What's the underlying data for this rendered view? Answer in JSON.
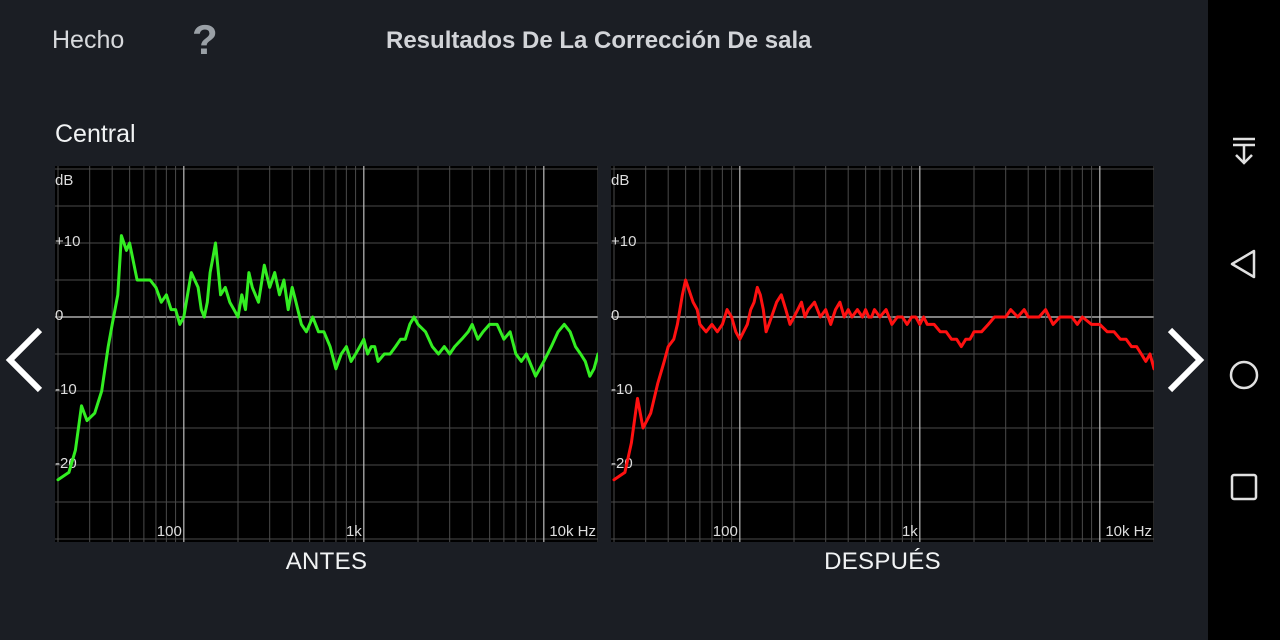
{
  "header": {
    "done_label": "Hecho",
    "help_label": "?",
    "title": "Resultados De La Corrección De sala"
  },
  "channel": "Central",
  "colors": {
    "before": "#33ee22",
    "after": "#ff1111",
    "grid": "#555555",
    "zero": "#cccccc"
  },
  "chart_data": [
    {
      "type": "line",
      "caption": "ANTES",
      "color": "#33ee22",
      "ylabel": "dB",
      "xlabel": "Hz",
      "x_scale": "log",
      "xlim": [
        20,
        20000
      ],
      "ylim": [
        -30,
        20
      ],
      "y_ticks": [
        10,
        0,
        -10,
        -20
      ],
      "y_tick_labels": [
        "+10",
        "0",
        "-10",
        "-20"
      ],
      "x_ticks": [
        100,
        1000,
        10000
      ],
      "x_tick_labels": [
        "100",
        "1k",
        "10k Hz"
      ],
      "series": [
        {
          "x": [
            20,
            23,
            25,
            27,
            29,
            32,
            35,
            38,
            40,
            43,
            45,
            48,
            50,
            55,
            58,
            60,
            65,
            70,
            75,
            80,
            85,
            90,
            95,
            100,
            110,
            115,
            120,
            125,
            130,
            135,
            140,
            145,
            150,
            160,
            170,
            180,
            190,
            200,
            210,
            220,
            230,
            240,
            260,
            280,
            300,
            320,
            340,
            360,
            380,
            400,
            420,
            450,
            480,
            500,
            520,
            540,
            560,
            600,
            650,
            700,
            750,
            800,
            850,
            900,
            950,
            1000,
            1050,
            1100,
            1150,
            1200,
            1300,
            1400,
            1500,
            1600,
            1700,
            1800,
            1900,
            2000,
            2200,
            2400,
            2600,
            2800,
            3000,
            3200,
            3500,
            3800,
            4000,
            4300,
            4600,
            5000,
            5500,
            6000,
            6500,
            7000,
            7500,
            8000,
            9000,
            10000,
            11000,
            12000,
            13000,
            14000,
            15000,
            16000,
            17000,
            18000,
            19000,
            20000
          ],
          "y": [
            -22,
            -21,
            -18,
            -12,
            -14,
            -13,
            -10,
            -4,
            -1,
            3,
            11,
            9,
            10,
            5,
            5,
            5,
            5,
            4,
            2,
            3,
            1,
            1,
            -1,
            0,
            6,
            5,
            4,
            1,
            0,
            2,
            6,
            8,
            10,
            3,
            4,
            2,
            1,
            0,
            3,
            1,
            6,
            4,
            2,
            7,
            4,
            6,
            3,
            5,
            1,
            4,
            2,
            -1,
            -2,
            -1,
            0,
            -1,
            -2,
            -2,
            -4,
            -7,
            -5,
            -4,
            -6,
            -5,
            -4,
            -3,
            -5,
            -4,
            -4,
            -6,
            -5,
            -5,
            -4,
            -3,
            -3,
            -1,
            0,
            -1,
            -2,
            -4,
            -5,
            -4,
            -5,
            -4,
            -3,
            -2,
            -1,
            -3,
            -2,
            -1,
            -1,
            -3,
            -2,
            -5,
            -6,
            -5,
            -8,
            -6,
            -4,
            -2,
            -1,
            -2,
            -4,
            -5,
            -6,
            -8,
            -7,
            -5
          ]
        }
      ]
    },
    {
      "type": "line",
      "caption": "DESPUÉS",
      "color": "#ff1111",
      "ylabel": "dB",
      "xlabel": "Hz",
      "x_scale": "log",
      "xlim": [
        20,
        20000
      ],
      "ylim": [
        -30,
        20
      ],
      "y_ticks": [
        10,
        0,
        -10,
        -20
      ],
      "y_tick_labels": [
        "+10",
        "0",
        "-10",
        "-20"
      ],
      "x_ticks": [
        100,
        1000,
        10000
      ],
      "x_tick_labels": [
        "100",
        "1k",
        "10k Hz"
      ],
      "series": [
        {
          "x": [
            20,
            23,
            25,
            27,
            29,
            32,
            35,
            38,
            40,
            43,
            45,
            48,
            50,
            55,
            58,
            60,
            65,
            70,
            75,
            80,
            85,
            90,
            95,
            100,
            110,
            115,
            120,
            125,
            130,
            135,
            140,
            145,
            150,
            160,
            170,
            180,
            190,
            200,
            210,
            220,
            230,
            240,
            260,
            280,
            300,
            320,
            340,
            360,
            380,
            400,
            420,
            450,
            480,
            500,
            520,
            540,
            560,
            600,
            650,
            700,
            750,
            800,
            850,
            900,
            950,
            1000,
            1050,
            1100,
            1150,
            1200,
            1300,
            1400,
            1500,
            1600,
            1700,
            1800,
            1900,
            2000,
            2200,
            2400,
            2600,
            2800,
            3000,
            3200,
            3500,
            3800,
            4000,
            4300,
            4600,
            5000,
            5500,
            6000,
            6500,
            7000,
            7500,
            8000,
            9000,
            10000,
            11000,
            12000,
            13000,
            14000,
            15000,
            16000,
            17000,
            18000,
            19000,
            20000
          ],
          "y": [
            -22,
            -21,
            -17,
            -11,
            -15,
            -13,
            -9,
            -6,
            -4,
            -3,
            -1,
            3,
            5,
            2,
            1,
            -1,
            -2,
            -1,
            -2,
            -1,
            1,
            0,
            -2,
            -3,
            -1,
            1,
            2,
            4,
            3,
            1,
            -2,
            -1,
            0,
            2,
            3,
            1,
            -1,
            0,
            1,
            2,
            0,
            1,
            2,
            0,
            1,
            -1,
            1,
            2,
            0,
            1,
            0,
            1,
            0,
            1,
            0,
            0,
            1,
            0,
            1,
            -1,
            0,
            0,
            -1,
            0,
            0,
            -1,
            0,
            -1,
            -1,
            -1,
            -2,
            -2,
            -3,
            -3,
            -4,
            -3,
            -3,
            -2,
            -2,
            -1,
            0,
            0,
            0,
            1,
            0,
            1,
            0,
            0,
            0,
            1,
            -1,
            0,
            0,
            0,
            -1,
            0,
            -1,
            -1,
            -2,
            -2,
            -3,
            -3,
            -4,
            -4,
            -5,
            -6,
            -5,
            -7
          ]
        }
      ]
    }
  ]
}
